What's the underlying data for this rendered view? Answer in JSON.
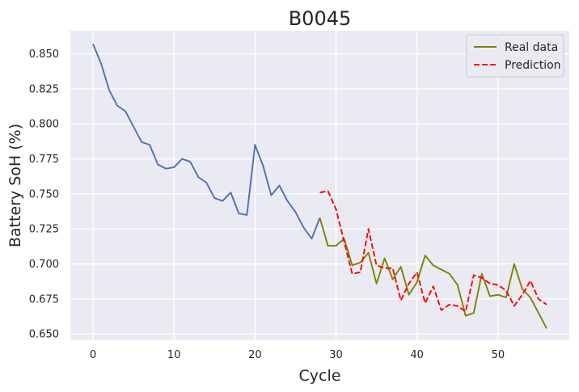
{
  "chart_data": {
    "type": "line",
    "title": "B0045",
    "xlabel": "Cycle",
    "ylabel": "Battery SoH (%)",
    "xlim": [
      -2.8,
      58.8
    ],
    "ylim": [
      0.6455,
      0.8665
    ],
    "xticks": [
      0,
      10,
      20,
      30,
      40,
      50
    ],
    "yticks": [
      0.65,
      0.675,
      0.7,
      0.725,
      0.75,
      0.775,
      0.8,
      0.825,
      0.85
    ],
    "xtick_labels": [
      "0",
      "10",
      "20",
      "30",
      "40",
      "50"
    ],
    "ytick_labels": [
      "0.650",
      "0.675",
      "0.700",
      "0.725",
      "0.750",
      "0.775",
      "0.800",
      "0.825",
      "0.850"
    ],
    "grid": true,
    "legend_position": "top-right",
    "series": [
      {
        "name": "",
        "color": "#4c72b0",
        "style": "solid",
        "x": [
          0,
          1,
          2,
          3,
          4,
          5,
          6,
          7,
          8,
          9,
          10,
          11,
          12,
          13,
          14,
          15,
          16,
          17,
          18,
          19,
          20,
          21,
          22,
          23,
          24,
          25,
          26,
          27,
          28
        ],
        "y": [
          0.857,
          0.843,
          0.824,
          0.813,
          0.809,
          0.798,
          0.787,
          0.785,
          0.771,
          0.768,
          0.769,
          0.775,
          0.773,
          0.762,
          0.758,
          0.747,
          0.745,
          0.751,
          0.736,
          0.735,
          0.785,
          0.77,
          0.749,
          0.756,
          0.745,
          0.737,
          0.726,
          0.718,
          0.733
        ]
      },
      {
        "name": "Real data",
        "color": "#808000",
        "style": "solid",
        "x": [
          28,
          29,
          30,
          31,
          32,
          33,
          34,
          35,
          36,
          37,
          38,
          39,
          40,
          41,
          42,
          43,
          44,
          45,
          46,
          47,
          48,
          49,
          50,
          51,
          52,
          53,
          54,
          55,
          56
        ],
        "y": [
          0.733,
          0.713,
          0.713,
          0.718,
          0.699,
          0.701,
          0.708,
          0.686,
          0.704,
          0.689,
          0.698,
          0.678,
          0.687,
          0.706,
          0.699,
          0.696,
          0.693,
          0.685,
          0.663,
          0.665,
          0.693,
          0.677,
          0.678,
          0.676,
          0.7,
          0.682,
          0.676,
          0.665,
          0.654
        ]
      },
      {
        "name": "Prediction",
        "color": "#ff0000",
        "style": "dashed",
        "x": [
          28,
          29,
          30,
          31,
          32,
          33,
          34,
          35,
          36,
          37,
          38,
          39,
          40,
          41,
          42,
          43,
          44,
          45,
          46,
          47,
          48,
          49,
          50,
          51,
          52,
          53,
          54,
          55,
          56
        ],
        "y": [
          0.751,
          0.752,
          0.739,
          0.716,
          0.693,
          0.694,
          0.725,
          0.699,
          0.697,
          0.697,
          0.674,
          0.686,
          0.694,
          0.672,
          0.684,
          0.667,
          0.671,
          0.67,
          0.666,
          0.692,
          0.69,
          0.686,
          0.685,
          0.681,
          0.67,
          0.678,
          0.688,
          0.675,
          0.671
        ]
      }
    ]
  }
}
